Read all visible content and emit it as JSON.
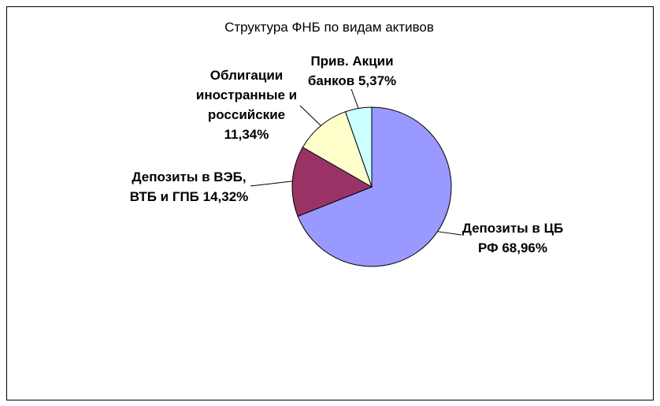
{
  "chart_data": {
    "type": "pie",
    "title": "Структура ФНБ по видам активов",
    "categories": [
      "Депозиты в ЦБ РФ",
      "Депозиты в ВЭБ, ВТБ и ГПБ",
      "Облигации иностранные и российские",
      "Прив. Акции банков"
    ],
    "values": [
      68.96,
      14.32,
      11.34,
      5.37
    ],
    "value_labels": [
      "68,96%",
      "14,32%",
      "11,34%",
      "5,37%"
    ],
    "colors": [
      "#9999ff",
      "#993366",
      "#ffffcc",
      "#ccffff"
    ]
  }
}
